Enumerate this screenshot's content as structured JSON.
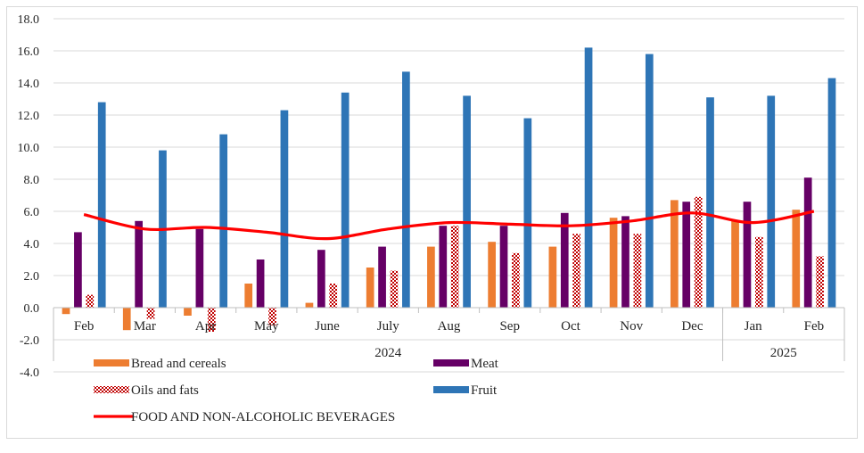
{
  "chart_data": {
    "type": "bar",
    "title": "",
    "xlabel": "",
    "ylabel": "",
    "ylim": [
      -4.0,
      18.0
    ],
    "yticks": [
      "18.0",
      "16.0",
      "14.0",
      "12.0",
      "10.0",
      "8.0",
      "6.0",
      "4.0",
      "2.0",
      "0.0",
      "-2.0",
      "-4.0"
    ],
    "categories": [
      "Feb",
      "Mar",
      "Apr",
      "May",
      "June",
      "July",
      "Aug",
      "Sep",
      "Oct",
      "Nov",
      "Dec",
      "Jan",
      "Feb"
    ],
    "year_groups": [
      {
        "label": "2024",
        "span": 11
      },
      {
        "label": "2025",
        "span": 2
      }
    ],
    "grid": "horizontal",
    "legend_position": "bottom",
    "series": [
      {
        "name": "Bread and cereals",
        "type": "bar",
        "color": "#ED7D31",
        "pattern": "solid",
        "values": [
          -0.4,
          -1.4,
          -0.5,
          1.5,
          0.3,
          2.5,
          3.8,
          4.1,
          3.8,
          5.6,
          6.7,
          5.4,
          6.1
        ]
      },
      {
        "name": "Meat",
        "type": "bar",
        "color": "#660066",
        "pattern": "solid",
        "values": [
          4.7,
          5.4,
          4.9,
          3.0,
          3.6,
          3.8,
          5.1,
          5.1,
          5.9,
          5.7,
          6.6,
          6.6,
          8.1
        ]
      },
      {
        "name": "Oils and fats",
        "type": "bar",
        "color": "#C00000",
        "pattern": "checker",
        "values": [
          0.8,
          -0.7,
          -1.5,
          -1.1,
          1.5,
          2.3,
          5.1,
          3.4,
          4.6,
          4.6,
          6.9,
          4.4,
          3.2
        ]
      },
      {
        "name": "Fruit",
        "type": "bar",
        "color": "#2E75B6",
        "pattern": "solid",
        "values": [
          12.8,
          9.8,
          10.8,
          12.3,
          13.4,
          14.7,
          13.2,
          11.8,
          16.2,
          15.8,
          13.1,
          13.2,
          14.3
        ]
      },
      {
        "name": "FOOD AND NON-ALCOHOLIC BEVERAGES",
        "type": "line",
        "color": "#FF0000",
        "pattern": "line",
        "values": [
          5.8,
          4.9,
          5.0,
          4.7,
          4.3,
          4.9,
          5.3,
          5.2,
          5.1,
          5.4,
          5.9,
          5.3,
          6.0
        ]
      }
    ]
  }
}
